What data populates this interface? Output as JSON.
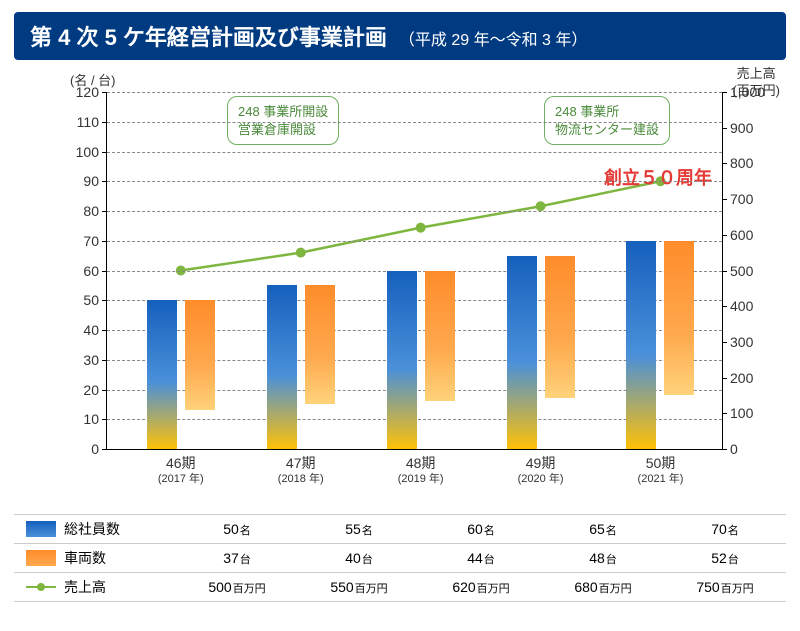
{
  "title": {
    "main": "第 4 次 5 ケ年経営計画及び事業計画",
    "sub": "（平成 29 年〜令和 3 年）"
  },
  "axis": {
    "left_label": "(名 / 台)",
    "right_label_line1": "売上高",
    "right_label_line2": "(百万円)",
    "left_ticks": [
      0,
      10,
      20,
      30,
      40,
      50,
      60,
      70,
      80,
      90,
      100,
      110,
      120
    ],
    "left_max": 120,
    "right_ticks": [
      0,
      100,
      200,
      300,
      400,
      500,
      600,
      700,
      800,
      900,
      1000
    ],
    "right_max": 1000
  },
  "categories": [
    {
      "period": "46期",
      "year": "(2017 年)"
    },
    {
      "period": "47期",
      "year": "(2018 年)"
    },
    {
      "period": "48期",
      "year": "(2019 年)"
    },
    {
      "period": "49期",
      "year": "(2020 年)"
    },
    {
      "period": "50期",
      "year": "(2021 年)"
    }
  ],
  "series": {
    "employees": {
      "label": "総社員数",
      "unit": "名",
      "values": [
        50,
        55,
        60,
        65,
        70
      ],
      "color_top": "#1560bd",
      "color_bottom": "#ffc107"
    },
    "vehicles": {
      "label": "車両数",
      "unit": "台",
      "values": [
        37,
        40,
        44,
        48,
        52
      ],
      "color_top": "#ff8c2b",
      "color_bottom": "#ffd27a"
    },
    "sales": {
      "label": "売上高",
      "unit": "百万円",
      "values": [
        500,
        550,
        620,
        680,
        750
      ],
      "color": "#7fb63f",
      "marker": "circle"
    }
  },
  "callouts": {
    "c1": {
      "line1": "248 事業所開設",
      "line2": "営業倉庫開設"
    },
    "c2": {
      "line1": "248 事業所",
      "line2": "物流センター建設"
    }
  },
  "anniv": "創立５０周年",
  "group_positions_pct": [
    3,
    22.5,
    42,
    61.5,
    81
  ],
  "colors": {
    "title_bg": "#003b82",
    "grid": "#888888",
    "line": "#7fb63f",
    "anniv": "#e53935"
  }
}
